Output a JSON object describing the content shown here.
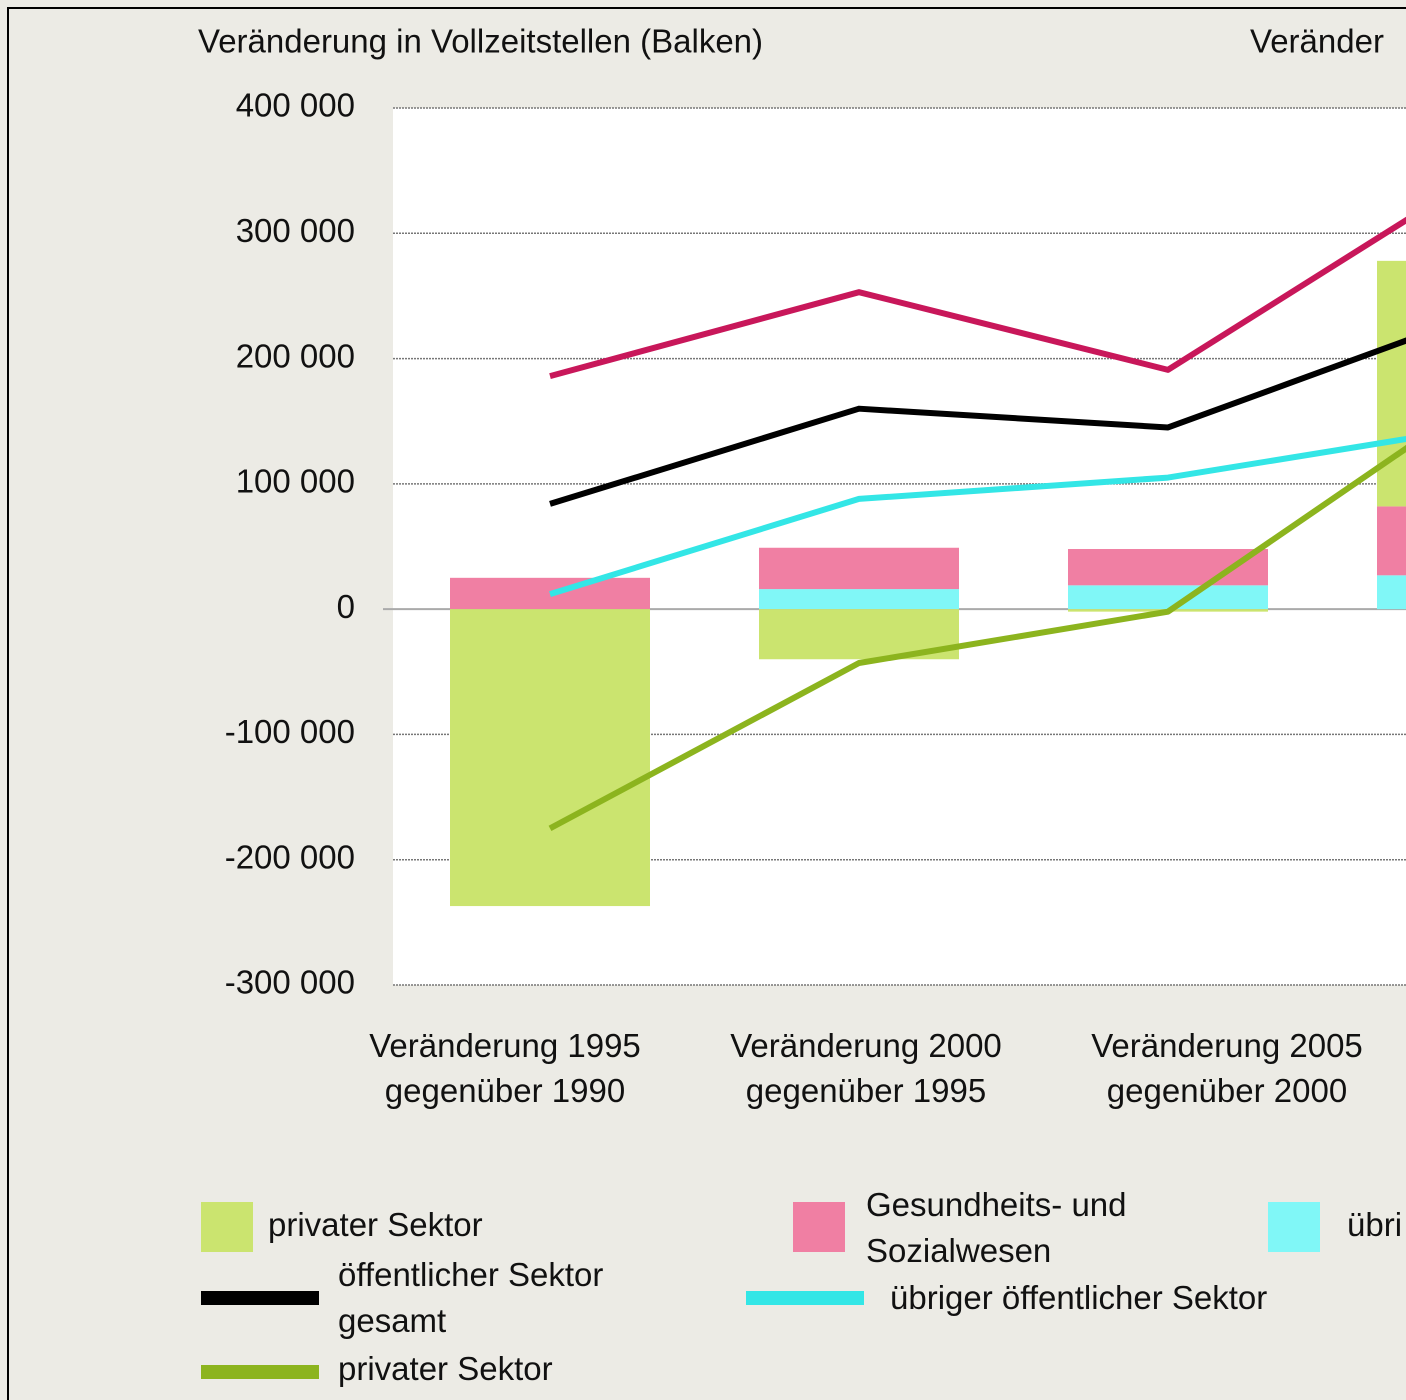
{
  "chart_data": {
    "type": "bar",
    "title": "Veränderung in Vollzeitstellen (Balken)",
    "y2_label": "Veränder",
    "categories": [
      "Veränderung 1995 gegenüber 1990",
      "Veränderung 2000 gegenüber 1995",
      "Veränderung 2005 gegenüber 2000",
      null
    ],
    "ylim": [
      -300000,
      400000
    ],
    "yticks": [
      {
        "value": 400000,
        "label": "400 000"
      },
      {
        "value": 300000,
        "label": "300 000"
      },
      {
        "value": 200000,
        "label": "200 000"
      },
      {
        "value": 100000,
        "label": "100 000"
      },
      0,
      {
        "value": -100000,
        "label": "-100 000"
      },
      {
        "value": -200000,
        "label": "-200 000"
      },
      {
        "value": -300000,
        "label": "-300 000"
      }
    ],
    "grid": true,
    "series": [
      {
        "name": "privater Sektor",
        "color": "#cbe46f",
        "values": [
          -237000,
          -40000,
          -2000,
          196000
        ]
      },
      {
        "name": "Gesundheits- und Sozialwesen",
        "color": "#f07fa3",
        "values": [
          25000,
          33000,
          29000,
          55000
        ]
      },
      {
        "name": "übri",
        "color": "#80f7f7",
        "values": [
          0,
          16000,
          19000,
          27000
        ]
      }
    ],
    "lines": [
      {
        "color": "#c8175a",
        "values": [
          186000,
          253000,
          191000,
          346000
        ]
      },
      {
        "name": "öffentlicher Sektor gesamt",
        "color": "#000000",
        "values": [
          84000,
          160000,
          145000,
          235000
        ]
      },
      {
        "name": "übriger öffentlicher Sektor",
        "color": "#33e6e6",
        "values": [
          12000,
          88000,
          105000,
          145000
        ]
      },
      {
        "name": "privater Sektor",
        "color": "#8cb41e",
        "values": [
          -175000,
          -43000,
          -2000,
          167000
        ]
      }
    ]
  }
}
